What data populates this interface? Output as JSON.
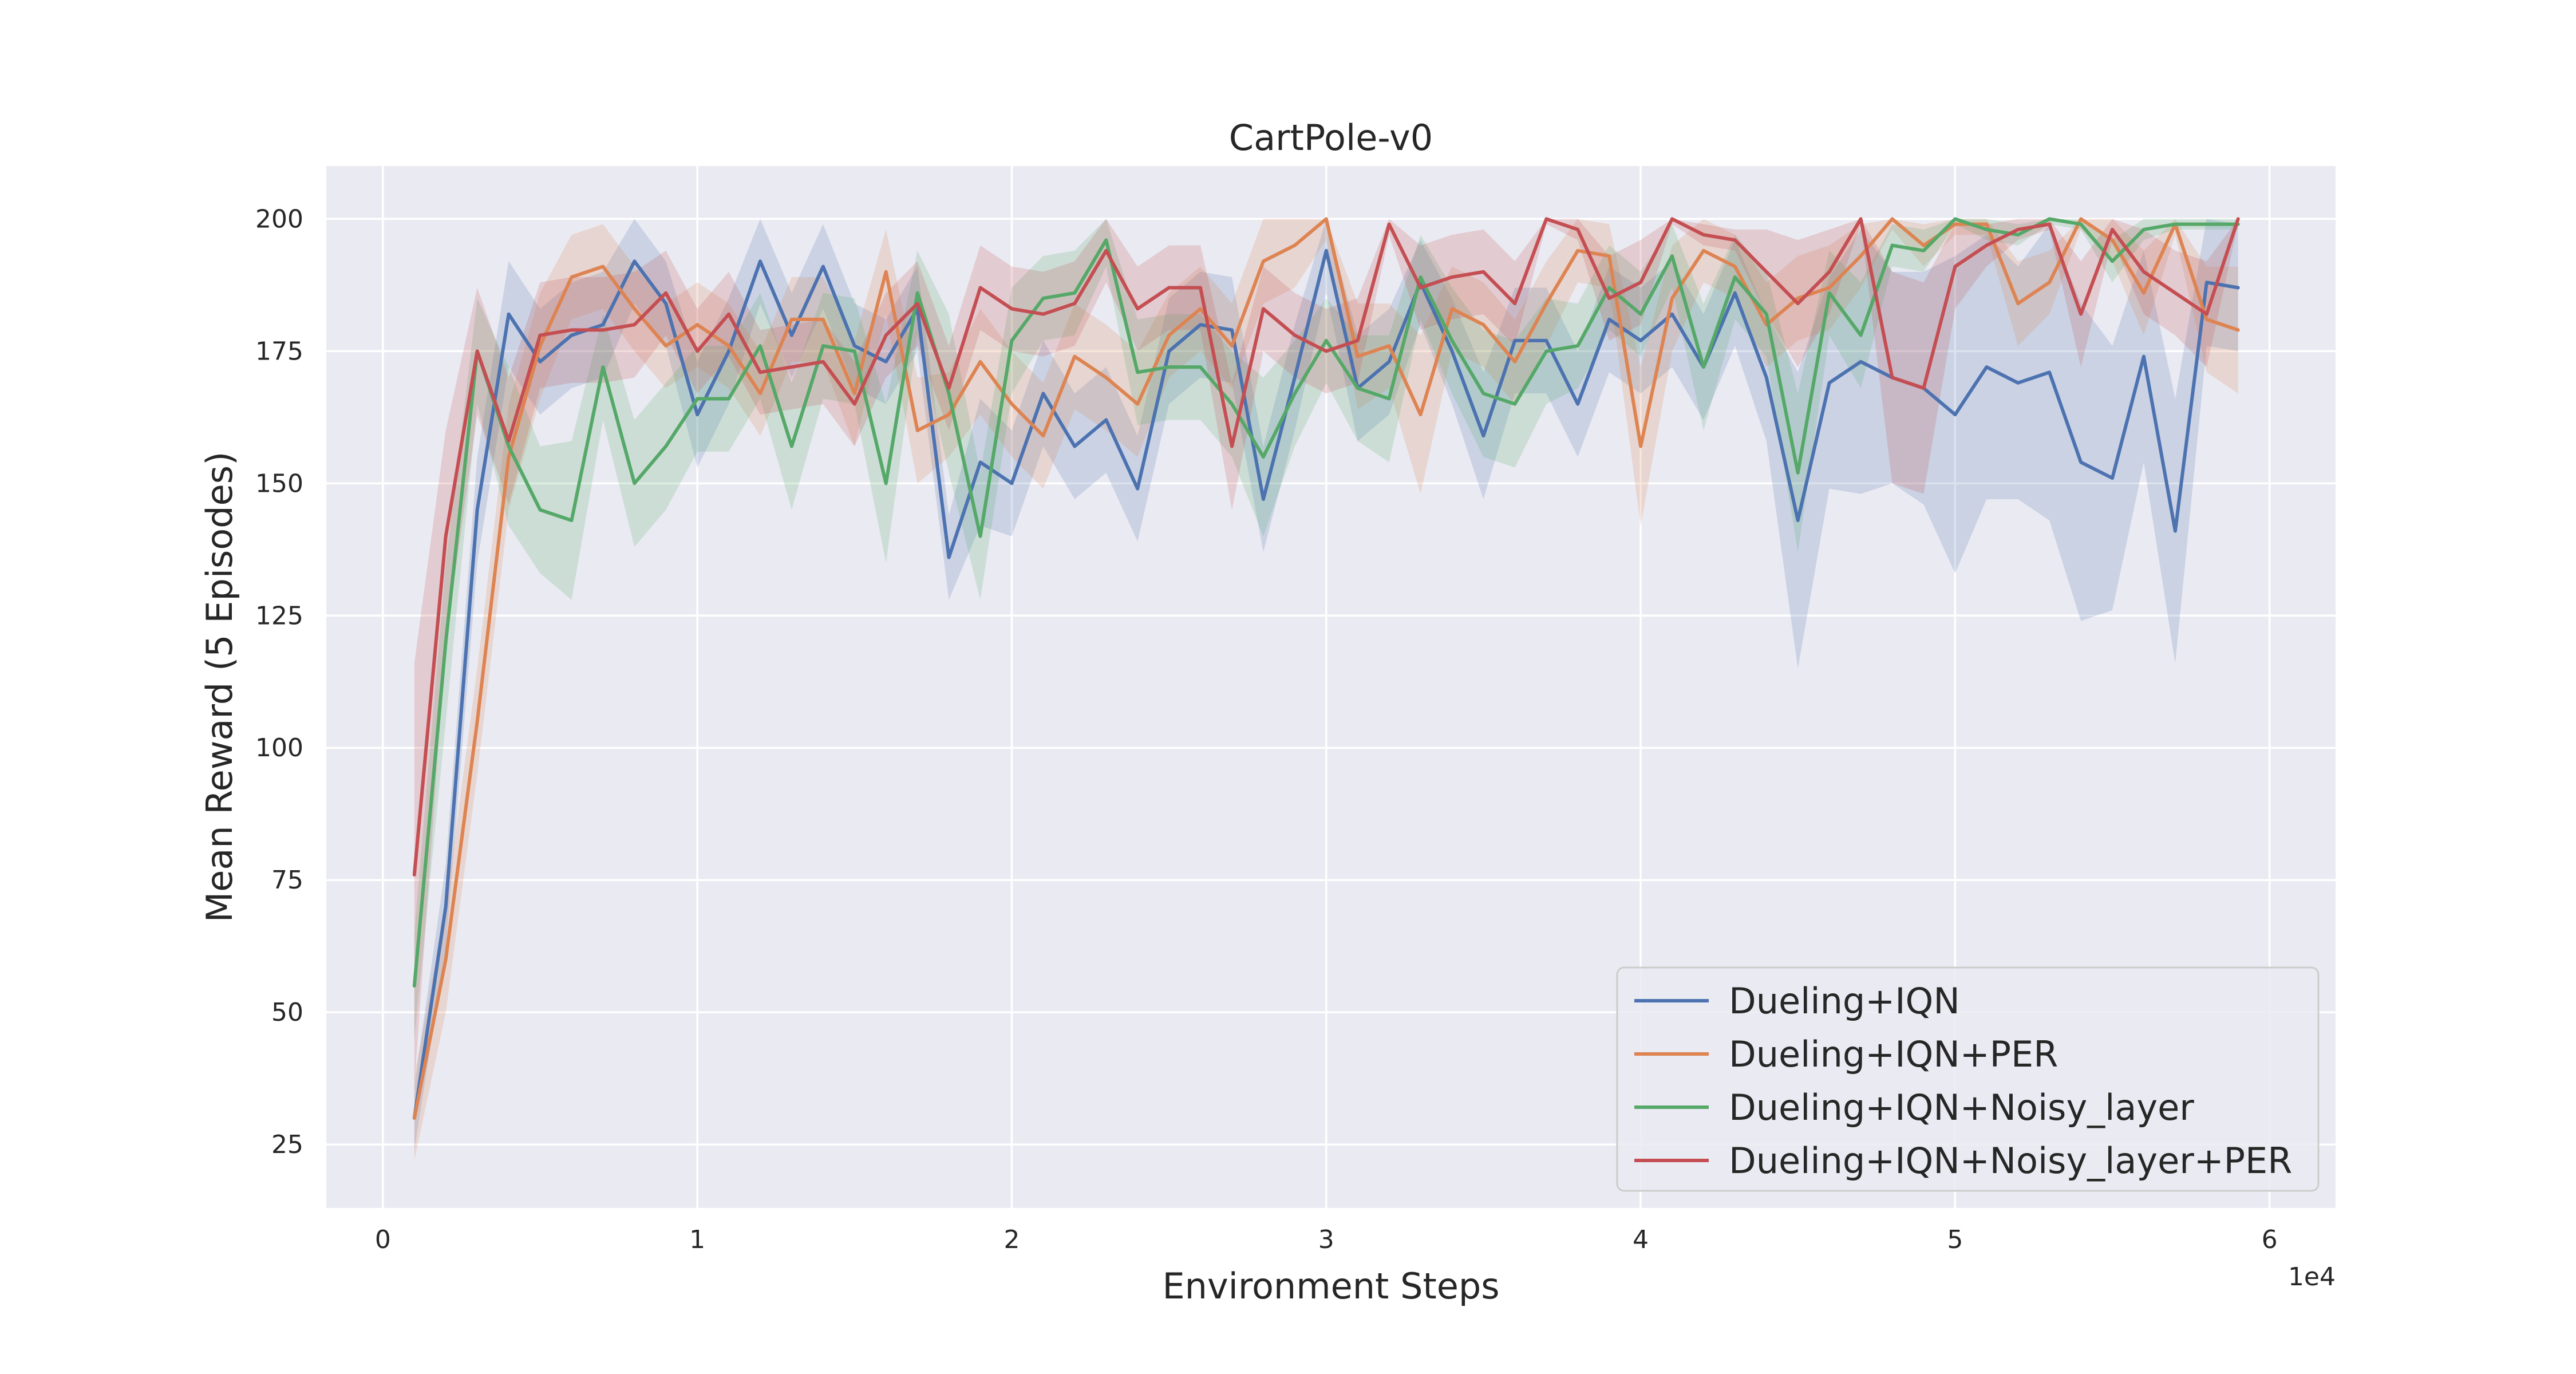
{
  "chart_data": {
    "type": "line",
    "title": "CartPole-v0",
    "xlabel": "Environment Steps",
    "ylabel": "Mean Reward (5 Episodes)",
    "x_offset_label": "1e4",
    "xlim": [
      -1800,
      62100
    ],
    "ylim": [
      13,
      210
    ],
    "x_ticks": [
      0,
      10000,
      20000,
      30000,
      40000,
      50000,
      60000
    ],
    "x_tick_labels": [
      "0",
      "1",
      "2",
      "3",
      "4",
      "5",
      "6"
    ],
    "y_ticks": [
      25,
      50,
      75,
      100,
      125,
      150,
      175,
      200
    ],
    "y_tick_labels": [
      "25",
      "50",
      "75",
      "100",
      "125",
      "150",
      "175",
      "200"
    ],
    "grid": true,
    "legend_position": "bottom-right",
    "x": [
      1000,
      2000,
      3000,
      4000,
      5000,
      6000,
      7000,
      8000,
      9000,
      10000,
      11000,
      12000,
      13000,
      14000,
      15000,
      16000,
      17000,
      18000,
      19000,
      20000,
      21000,
      22000,
      23000,
      24000,
      25000,
      26000,
      27000,
      28000,
      29000,
      30000,
      31000,
      32000,
      33000,
      34000,
      35000,
      36000,
      37000,
      38000,
      39000,
      40000,
      41000,
      42000,
      43000,
      44000,
      45000,
      46000,
      47000,
      48000,
      49000,
      50000,
      51000,
      52000,
      53000,
      54000,
      55000,
      56000,
      57000,
      58000,
      59000
    ],
    "series": [
      {
        "name": "Dueling+IQN",
        "color": "#4c72b0",
        "values": [
          30,
          70,
          145,
          182,
          173,
          178,
          180,
          192,
          184,
          163,
          175,
          192,
          178,
          191,
          176,
          173,
          183,
          136,
          154,
          150,
          167,
          157,
          162,
          149,
          175,
          180,
          179,
          147,
          170,
          194,
          168,
          173,
          188,
          175,
          159,
          177,
          177,
          165,
          181,
          177,
          182,
          172,
          186,
          170,
          143,
          169,
          173,
          170,
          168,
          163,
          172,
          169,
          171,
          154,
          151,
          174,
          141,
          188,
          187
        ],
        "spread": [
          6,
          8,
          10,
          10,
          10,
          10,
          10,
          8,
          8,
          10,
          10,
          8,
          8,
          8,
          8,
          8,
          8,
          8,
          12,
          10,
          10,
          10,
          10,
          10,
          10,
          10,
          10,
          10,
          10,
          8,
          10,
          10,
          8,
          10,
          12,
          10,
          10,
          10,
          10,
          10,
          10,
          10,
          10,
          12,
          28,
          20,
          25,
          20,
          22,
          30,
          25,
          22,
          28,
          30,
          25,
          20,
          25,
          12,
          12
        ]
      },
      {
        "name": "Dueling+IQN+PER",
        "color": "#dd8452",
        "values": [
          30,
          60,
          105,
          155,
          176,
          189,
          191,
          183,
          176,
          180,
          176,
          167,
          181,
          181,
          167,
          190,
          160,
          163,
          173,
          165,
          159,
          174,
          170,
          165,
          178,
          183,
          176,
          192,
          195,
          200,
          174,
          176,
          163,
          183,
          180,
          173,
          184,
          194,
          193,
          157,
          185,
          194,
          191,
          180,
          185,
          187,
          193,
          200,
          195,
          199,
          199,
          184,
          188,
          200,
          196,
          186,
          199,
          181,
          179
        ],
        "spread": [
          8,
          10,
          10,
          10,
          10,
          8,
          8,
          8,
          8,
          8,
          8,
          8,
          8,
          8,
          10,
          8,
          10,
          8,
          10,
          10,
          10,
          10,
          10,
          10,
          8,
          8,
          8,
          8,
          8,
          4,
          10,
          8,
          15,
          8,
          8,
          8,
          8,
          6,
          6,
          15,
          10,
          6,
          6,
          8,
          8,
          8,
          6,
          2,
          4,
          2,
          2,
          8,
          6,
          2,
          4,
          8,
          2,
          10,
          12
        ]
      },
      {
        "name": "Dueling+IQN+Noisy_layer",
        "color": "#55a868",
        "values": [
          55,
          120,
          175,
          157,
          145,
          143,
          172,
          150,
          157,
          166,
          166,
          176,
          157,
          176,
          175,
          150,
          186,
          167,
          140,
          177,
          185,
          186,
          196,
          171,
          172,
          172,
          165,
          155,
          167,
          177,
          168,
          166,
          189,
          177,
          167,
          165,
          175,
          176,
          187,
          182,
          193,
          172,
          189,
          182,
          152,
          186,
          178,
          195,
          194,
          200,
          198,
          197,
          200,
          199,
          192,
          198,
          199,
          199,
          199
        ],
        "spread": [
          10,
          15,
          10,
          15,
          12,
          15,
          10,
          12,
          12,
          10,
          10,
          10,
          12,
          10,
          10,
          15,
          8,
          15,
          12,
          10,
          8,
          8,
          5,
          10,
          10,
          10,
          10,
          15,
          10,
          8,
          10,
          12,
          8,
          10,
          12,
          12,
          10,
          8,
          8,
          8,
          6,
          12,
          8,
          8,
          15,
          8,
          10,
          4,
          4,
          1,
          2,
          2,
          1,
          1,
          4,
          2,
          1,
          1,
          1
        ]
      },
      {
        "name": "Dueling+IQN+Noisy_layer+PER",
        "color": "#c44e52",
        "values": [
          76,
          140,
          175,
          158,
          178,
          179,
          179,
          180,
          186,
          175,
          182,
          171,
          172,
          173,
          165,
          178,
          184,
          168,
          187,
          183,
          182,
          184,
          194,
          183,
          187,
          187,
          157,
          183,
          178,
          175,
          177,
          199,
          187,
          189,
          190,
          184,
          200,
          198,
          185,
          188,
          200,
          197,
          196,
          190,
          184,
          190,
          200,
          170,
          168,
          191,
          195,
          198,
          199,
          182,
          198,
          190,
          186,
          182,
          200
        ],
        "spread": [
          40,
          20,
          12,
          12,
          10,
          10,
          10,
          10,
          8,
          8,
          8,
          8,
          8,
          8,
          8,
          8,
          8,
          8,
          8,
          8,
          8,
          8,
          6,
          8,
          8,
          8,
          12,
          8,
          8,
          8,
          8,
          2,
          8,
          8,
          8,
          8,
          1,
          2,
          8,
          8,
          1,
          2,
          2,
          8,
          12,
          8,
          1,
          20,
          20,
          8,
          4,
          2,
          1,
          10,
          2,
          8,
          8,
          10,
          1
        ]
      }
    ]
  }
}
